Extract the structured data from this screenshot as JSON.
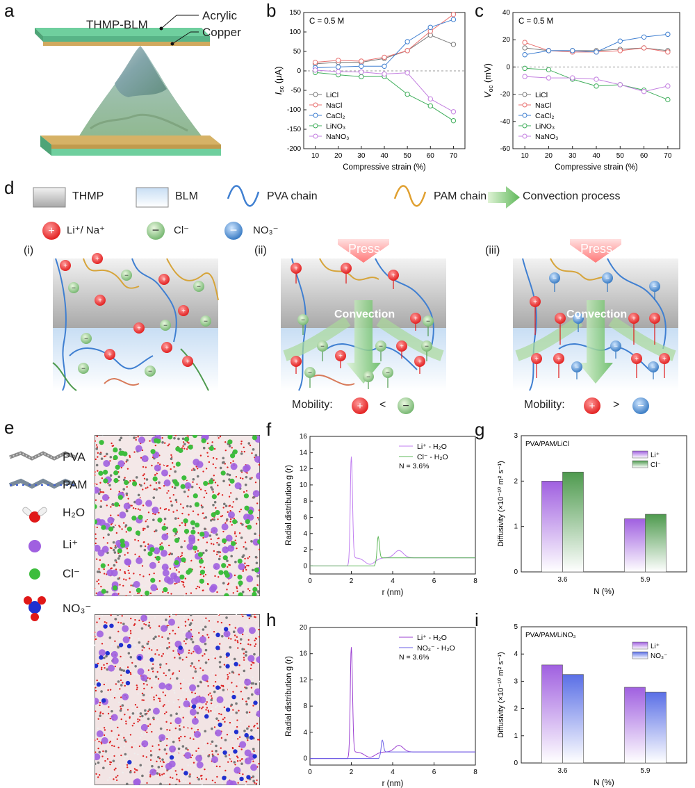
{
  "panel_letters": {
    "a": "a",
    "b": "b",
    "c": "c",
    "d": "d",
    "e": "e",
    "f": "f",
    "g": "g",
    "h": "h",
    "i": "i"
  },
  "panel_a": {
    "top_label": "THMP-BLM",
    "acrylic": "Acrylic",
    "copper": "Copper"
  },
  "colors": {
    "LiCl": "#7a7a7a",
    "NaCl": "#e8706f",
    "CaCl2": "#3f7fd1",
    "LiNO3": "#3fae5b",
    "NaNO3": "#c37fe0",
    "li_purple": "#a060e0",
    "cl_green": "#4e9a4e",
    "no3_blue": "#5a6fe6"
  },
  "panel_d": {
    "legend": {
      "thmp": "THMP",
      "blm": "BLM",
      "pva": "PVA chain",
      "pam": "PAM chain",
      "convection": "Convection process",
      "cation": "Li⁺/ Na⁺",
      "chloride": "Cl⁻",
      "nitrate": "NO₃⁻"
    },
    "sub": [
      "(i)",
      "(ii)",
      "(iii)"
    ],
    "press": "Press",
    "convection_text": "Convection",
    "mobility": "Mobility:",
    "lt": "<",
    "gt": ">"
  },
  "panel_e": {
    "labels": [
      "PVA",
      "PAM",
      "H₂O",
      "Li⁺",
      "Cl⁻",
      "NO₃⁻"
    ]
  },
  "chart_data": [
    {
      "id": "b",
      "type": "line",
      "annotation": "C = 0.5 M",
      "xlabel": "Compressive strain (%)",
      "ylabel": "Isc (μA)",
      "xlim": [
        5,
        75
      ],
      "ylim": [
        -200,
        150
      ],
      "x": [
        10,
        20,
        30,
        40,
        50,
        60,
        70
      ],
      "xticks": [
        10,
        20,
        30,
        40,
        50,
        60,
        70
      ],
      "yticks": [
        150,
        100,
        50,
        0,
        -50,
        -100,
        -150,
        -200
      ],
      "legend_position": "bottom-left",
      "series": [
        {
          "name": "LiCl",
          "values": [
            18,
            22,
            22,
            32,
            52,
            92,
            68
          ]
        },
        {
          "name": "NaCl",
          "values": [
            22,
            27,
            25,
            35,
            52,
            102,
            145
          ]
        },
        {
          "name": "CaCl₂",
          "values": [
            8,
            10,
            12,
            12,
            75,
            112,
            132
          ]
        },
        {
          "name": "LiNO₃",
          "values": [
            -4,
            -10,
            -15,
            -14,
            -60,
            -90,
            -128
          ]
        },
        {
          "name": "NaNO₃",
          "values": [
            2,
            -2,
            -3,
            -8,
            -5,
            -72,
            -105
          ]
        }
      ]
    },
    {
      "id": "c",
      "type": "line",
      "annotation": "C = 0.5 M",
      "xlabel": "Compressive strain (%)",
      "ylabel": "Voc (mV)",
      "xlim": [
        5,
        75
      ],
      "ylim": [
        -60,
        40
      ],
      "x": [
        10,
        20,
        30,
        40,
        50,
        60,
        70
      ],
      "xticks": [
        10,
        20,
        30,
        40,
        50,
        60,
        70
      ],
      "yticks": [
        40,
        20,
        0,
        -20,
        -40,
        -60
      ],
      "legend_position": "bottom-left",
      "series": [
        {
          "name": "LiCl",
          "values": [
            14,
            12,
            12,
            12,
            13,
            14,
            12
          ]
        },
        {
          "name": "NaCl",
          "values": [
            18,
            12,
            11,
            11,
            12,
            14,
            11
          ]
        },
        {
          "name": "CaCl₂",
          "values": [
            9,
            12,
            12,
            11,
            19,
            22,
            24
          ]
        },
        {
          "name": "LiNO₃",
          "values": [
            -1,
            -2,
            -9,
            -14,
            -13,
            -17,
            -24
          ]
        },
        {
          "name": "NaNO₃",
          "values": [
            -7,
            -8,
            -8,
            -9,
            -13,
            -18,
            -14
          ]
        }
      ]
    },
    {
      "id": "f",
      "type": "line",
      "annotation": "N = 3.6%",
      "xlabel": "r (nm)",
      "ylabel": "Radial distribution g (r)",
      "xlim": [
        0,
        8
      ],
      "ylim": [
        -1,
        16
      ],
      "xticks": [
        0,
        2,
        4,
        6,
        8
      ],
      "yticks": [
        0,
        2,
        4,
        6,
        8,
        10,
        12,
        14,
        16
      ],
      "legend_position": "top-right",
      "series": [
        {
          "name": "Li⁺ - H₂O",
          "peaks": [
            [
              2.0,
              13.5
            ],
            [
              4.3,
              1.9
            ]
          ]
        },
        {
          "name": "Cl⁻ - H₂O",
          "peaks": [
            [
              3.3,
              3.6
            ]
          ]
        }
      ]
    },
    {
      "id": "h",
      "type": "line",
      "annotation": "N = 3.6%",
      "xlabel": "r (nm)",
      "ylabel": "Radial distribution g (r)",
      "xlim": [
        0,
        8
      ],
      "ylim": [
        -1,
        20
      ],
      "xticks": [
        0,
        2,
        4,
        6,
        8
      ],
      "yticks": [
        0,
        4,
        8,
        12,
        16,
        20
      ],
      "legend_position": "top-right",
      "series": [
        {
          "name": "Li⁺ - H₂O",
          "peaks": [
            [
              2.0,
              17.0
            ],
            [
              4.3,
              2.0
            ]
          ]
        },
        {
          "name": "NO₃⁻ - H₂O",
          "peaks": [
            [
              3.5,
              2.8
            ]
          ]
        }
      ]
    },
    {
      "id": "g",
      "type": "bar",
      "annotation": "PVA/PAM/LiCl",
      "xlabel": "N (%)",
      "ylabel": "Diffusivity (×10⁻¹⁰ m² s⁻¹)",
      "categories": [
        "3.6",
        "5.9"
      ],
      "ylim": [
        0,
        3
      ],
      "yticks": [
        0,
        1,
        2,
        3
      ],
      "legend_position": "top-right",
      "series": [
        {
          "name": "Li⁺",
          "values": [
            2.0,
            1.17
          ]
        },
        {
          "name": "Cl⁻",
          "values": [
            2.2,
            1.27
          ]
        }
      ]
    },
    {
      "id": "i",
      "type": "bar",
      "annotation": "PVA/PAM/LiNO₃",
      "xlabel": "N (%)",
      "ylabel": "Diffusivity (×10⁻¹⁰ m² s⁻¹)",
      "categories": [
        "3.6",
        "5.9"
      ],
      "ylim": [
        0,
        5
      ],
      "yticks": [
        0,
        1,
        2,
        3,
        4,
        5
      ],
      "legend_position": "top-right",
      "series": [
        {
          "name": "Li⁺",
          "values": [
            3.6,
            2.78
          ]
        },
        {
          "name": "NO₃⁻",
          "values": [
            3.25,
            2.6
          ]
        }
      ]
    }
  ]
}
